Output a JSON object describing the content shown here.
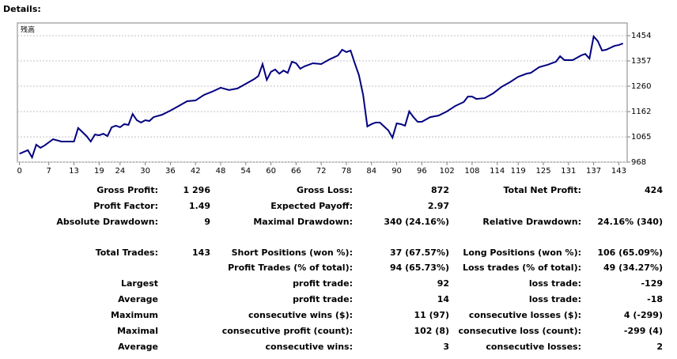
{
  "header": {
    "title": "Details:"
  },
  "chart_data": {
    "type": "line",
    "x": [
      0,
      2,
      3,
      4,
      5,
      6,
      7,
      8,
      10,
      13,
      14,
      16,
      17,
      18,
      19,
      20,
      21,
      22,
      23,
      24,
      25,
      26,
      27,
      28,
      29,
      30,
      31,
      32,
      34,
      36,
      38,
      40,
      42,
      44,
      46,
      48,
      50,
      52,
      54,
      56,
      57,
      58,
      59,
      60,
      61,
      62,
      63,
      64,
      65,
      66,
      67,
      68,
      70,
      72,
      74,
      76,
      77,
      78,
      79,
      80,
      81,
      82,
      83,
      84,
      85,
      86,
      88,
      89,
      90,
      91,
      92,
      93,
      94,
      95,
      96,
      98,
      100,
      102,
      104,
      106,
      107,
      108,
      109,
      111,
      113,
      115,
      117,
      119,
      121,
      122,
      124,
      126,
      128,
      129,
      130,
      132,
      134,
      135,
      136,
      137,
      138,
      139,
      140,
      142,
      143,
      144
    ],
    "series": [
      {
        "name": "残高",
        "color": "#000080",
        "values": [
          1000,
          1014,
          986,
          1035,
          1023,
          1032,
          1044,
          1056,
          1047,
          1047,
          1099,
          1068,
          1047,
          1074,
          1071,
          1077,
          1068,
          1102,
          1108,
          1102,
          1114,
          1111,
          1153,
          1129,
          1120,
          1129,
          1126,
          1141,
          1150,
          1166,
          1184,
          1202,
          1205,
          1226,
          1239,
          1254,
          1245,
          1251,
          1269,
          1287,
          1299,
          1345,
          1284,
          1315,
          1324,
          1308,
          1320,
          1311,
          1354,
          1348,
          1327,
          1336,
          1348,
          1345,
          1363,
          1378,
          1400,
          1391,
          1397,
          1348,
          1302,
          1226,
          1105,
          1114,
          1120,
          1120,
          1090,
          1062,
          1117,
          1114,
          1108,
          1163,
          1141,
          1123,
          1123,
          1141,
          1147,
          1163,
          1184,
          1199,
          1220,
          1220,
          1211,
          1214,
          1232,
          1257,
          1275,
          1296,
          1308,
          1311,
          1333,
          1342,
          1354,
          1375,
          1360,
          1360,
          1378,
          1384,
          1366,
          1451,
          1433,
          1397,
          1400,
          1415,
          1418,
          1424
        ]
      }
    ],
    "xlim": [
      -0.5,
      145
    ],
    "xticks": [
      0,
      7,
      13,
      19,
      24,
      30,
      36,
      42,
      48,
      54,
      60,
      66,
      72,
      78,
      84,
      90,
      96,
      102,
      108,
      114,
      119,
      125,
      131,
      137,
      143
    ],
    "ylim": [
      968,
      1503
    ],
    "yticks": [
      968,
      1065,
      1162,
      1260,
      1357,
      1454
    ],
    "grid": true
  },
  "table": {
    "rows": [
      [
        "Gross Profit:",
        "1 296",
        "Gross Loss:",
        "872",
        "Total Net Profit:",
        "424"
      ],
      [
        "Profit Factor:",
        "1.49",
        "Expected Payoff:",
        "2.97",
        null,
        null
      ],
      [
        "Absolute Drawdown:",
        "9",
        "Maximal Drawdown:",
        "340 (24.16%)",
        "Relative Drawdown:",
        "24.16% (340)"
      ],
      [
        "Total Trades:",
        "143",
        "Short Positions (won %):",
        "37 (67.57%)",
        "Long Positions (won %):",
        "106 (65.09%)"
      ],
      [
        null,
        null,
        "Profit Trades (% of total):",
        "94 (65.73%)",
        "Loss trades (% of total):",
        "49 (34.27%)"
      ],
      [
        "Largest",
        null,
        "profit trade:",
        "92",
        "loss trade:",
        "-129"
      ],
      [
        "Average",
        null,
        "profit trade:",
        "14",
        "loss trade:",
        "-18"
      ],
      [
        "Maximum",
        null,
        "consecutive wins ($):",
        "11 (97)",
        "consecutive losses ($):",
        "4 (-299)"
      ],
      [
        "Maximal",
        null,
        "consecutive profit (count):",
        "102 (8)",
        "consecutive loss (count):",
        "-299 (4)"
      ],
      [
        "Average",
        null,
        "consecutive wins:",
        "3",
        "consecutive losses:",
        "2"
      ]
    ]
  }
}
